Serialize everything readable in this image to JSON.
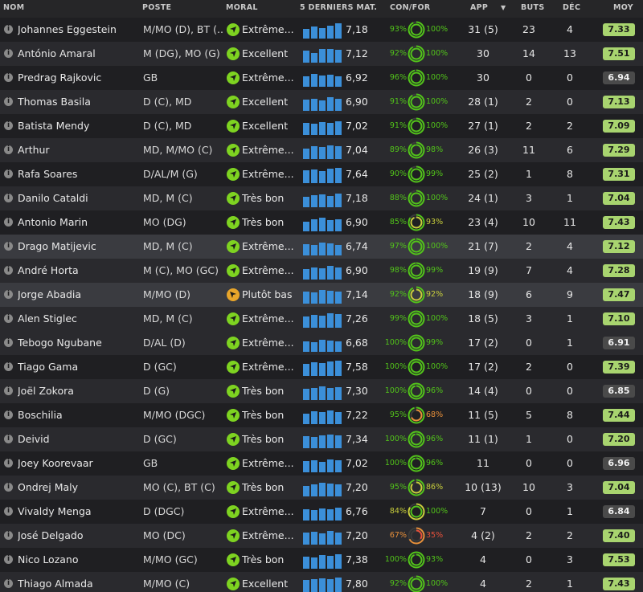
{
  "columns": {
    "name": "NOM",
    "position": "POSTE",
    "morale": "MORAL",
    "last5": "5 DERNIERS MAT...",
    "confor": "CON/FOR",
    "app": "APP",
    "goals": "BUTS",
    "assists": "DÉC",
    "avg": "MOY"
  },
  "colors": {
    "morale_good": "#7ed321",
    "morale_low": "#e8a52a",
    "bar": "#3b8fd9",
    "pct_green": "#52c41a",
    "pct_yellow": "#c9cf3c",
    "pct_orange": "#e8903a",
    "pct_red": "#e8503a",
    "avg_green": "#a8d46f",
    "avg_gray": "#4a4a4a"
  },
  "players": [
    {
      "name": "Johannes Eggestein",
      "position": "M/MO (D), BT (...",
      "morale": "Extrême...",
      "morale_level": "high",
      "form": [
        0.55,
        0.7,
        0.6,
        0.75,
        0.9
      ],
      "rating": "7,18",
      "con": "93%",
      "for": "100%",
      "app": "31 (5)",
      "goals": "23",
      "assists": "4",
      "avg": "7.33",
      "avg_style": "green",
      "con_color": "green",
      "for_color": "green"
    },
    {
      "name": "António Amaral",
      "position": "M (DG), MO (G)",
      "morale": "Excellent",
      "morale_level": "high",
      "form": [
        0.7,
        0.55,
        0.8,
        0.8,
        0.75
      ],
      "rating": "7,12",
      "con": "92%",
      "for": "100%",
      "app": "30",
      "goals": "14",
      "assists": "13",
      "avg": "7.51",
      "avg_style": "green",
      "con_color": "green",
      "for_color": "green"
    },
    {
      "name": "Predrag Rajkovic",
      "position": "GB",
      "morale": "Extrême...",
      "morale_level": "high",
      "form": [
        0.6,
        0.75,
        0.65,
        0.7,
        0.6
      ],
      "rating": "6,92",
      "con": "96%",
      "for": "100%",
      "app": "30",
      "goals": "0",
      "assists": "0",
      "avg": "6.94",
      "avg_style": "gray",
      "con_color": "green",
      "for_color": "green"
    },
    {
      "name": "Thomas Basila",
      "position": "D (C), MD",
      "morale": "Excellent",
      "morale_level": "high",
      "form": [
        0.65,
        0.7,
        0.6,
        0.8,
        0.7
      ],
      "rating": "6,90",
      "con": "91%",
      "for": "100%",
      "app": "28 (1)",
      "goals": "2",
      "assists": "0",
      "avg": "7.13",
      "avg_style": "green",
      "con_color": "green",
      "for_color": "green"
    },
    {
      "name": "Batista Mendy",
      "position": "D (C), MD",
      "morale": "Excellent",
      "morale_level": "high",
      "form": [
        0.7,
        0.65,
        0.75,
        0.7,
        0.8
      ],
      "rating": "7,02",
      "con": "91%",
      "for": "100%",
      "app": "27 (1)",
      "goals": "2",
      "assists": "2",
      "avg": "7.09",
      "avg_style": "green",
      "con_color": "green",
      "for_color": "green"
    },
    {
      "name": "Arthur",
      "position": "MD, M/MO (C)",
      "morale": "Extrême...",
      "morale_level": "high",
      "form": [
        0.6,
        0.75,
        0.7,
        0.8,
        0.75
      ],
      "rating": "7,04",
      "con": "89%",
      "for": "98%",
      "app": "26 (3)",
      "goals": "11",
      "assists": "6",
      "avg": "7.29",
      "avg_style": "green",
      "con_color": "green",
      "for_color": "green"
    },
    {
      "name": "Rafa Soares",
      "position": "D/AL/M (G)",
      "morale": "Extrême...",
      "morale_level": "high",
      "form": [
        0.75,
        0.8,
        0.7,
        0.85,
        0.9
      ],
      "rating": "7,64",
      "con": "90%",
      "for": "99%",
      "app": "25 (2)",
      "goals": "1",
      "assists": "8",
      "avg": "7.31",
      "avg_style": "green",
      "con_color": "green",
      "for_color": "green"
    },
    {
      "name": "Danilo Cataldi",
      "position": "MD, M (C)",
      "morale": "Très bon",
      "morale_level": "high",
      "form": [
        0.6,
        0.7,
        0.75,
        0.65,
        0.8
      ],
      "rating": "7,18",
      "con": "88%",
      "for": "100%",
      "app": "24 (1)",
      "goals": "3",
      "assists": "1",
      "avg": "7.04",
      "avg_style": "green",
      "con_color": "green",
      "for_color": "green"
    },
    {
      "name": "Antonio Marin",
      "position": "MO (DG)",
      "morale": "Très bon",
      "morale_level": "high",
      "form": [
        0.55,
        0.7,
        0.8,
        0.65,
        0.7
      ],
      "rating": "6,90",
      "con": "85%",
      "for": "93%",
      "app": "23 (4)",
      "goals": "10",
      "assists": "11",
      "avg": "7.43",
      "avg_style": "green",
      "con_color": "green",
      "for_color": "yellow"
    },
    {
      "name": "Drago Matijevic",
      "position": "MD, M (C)",
      "morale": "Extrême...",
      "morale_level": "high",
      "form": [
        0.65,
        0.6,
        0.75,
        0.7,
        0.6
      ],
      "rating": "6,74",
      "con": "97%",
      "for": "100%",
      "app": "21 (7)",
      "goals": "2",
      "assists": "4",
      "avg": "7.12",
      "avg_style": "green",
      "con_color": "green",
      "for_color": "green"
    },
    {
      "name": "André Horta",
      "position": "M (C), MO (GC)",
      "morale": "Extrême...",
      "morale_level": "high",
      "form": [
        0.6,
        0.7,
        0.65,
        0.8,
        0.7
      ],
      "rating": "6,90",
      "con": "98%",
      "for": "99%",
      "app": "19 (9)",
      "goals": "7",
      "assists": "4",
      "avg": "7.28",
      "avg_style": "green",
      "con_color": "green",
      "for_color": "green"
    },
    {
      "name": "Jorge Abadia",
      "position": "M/MO (D)",
      "morale": "Plutôt bas",
      "morale_level": "low",
      "form": [
        0.7,
        0.65,
        0.8,
        0.75,
        0.7
      ],
      "rating": "7,14",
      "con": "92%",
      "for": "92%",
      "app": "18 (9)",
      "goals": "6",
      "assists": "9",
      "avg": "7.47",
      "avg_style": "green",
      "con_color": "green",
      "for_color": "yellow"
    },
    {
      "name": "Alen Stiglec",
      "position": "MD, M (C)",
      "morale": "Extrême...",
      "morale_level": "high",
      "form": [
        0.65,
        0.75,
        0.7,
        0.85,
        0.8
      ],
      "rating": "7,26",
      "con": "99%",
      "for": "100%",
      "app": "18 (5)",
      "goals": "3",
      "assists": "1",
      "avg": "7.10",
      "avg_style": "green",
      "con_color": "green",
      "for_color": "green"
    },
    {
      "name": "Tebogo Ngubane",
      "position": "D/AL (D)",
      "morale": "Extrême...",
      "morale_level": "high",
      "form": [
        0.6,
        0.55,
        0.7,
        0.65,
        0.6
      ],
      "rating": "6,68",
      "con": "100%",
      "for": "99%",
      "app": "17 (2)",
      "goals": "0",
      "assists": "1",
      "avg": "6.91",
      "avg_style": "gray",
      "con_color": "green",
      "for_color": "green"
    },
    {
      "name": "Tiago Gama",
      "position": "D (GC)",
      "morale": "Extrême...",
      "morale_level": "high",
      "form": [
        0.7,
        0.8,
        0.75,
        0.85,
        0.9
      ],
      "rating": "7,58",
      "con": "100%",
      "for": "100%",
      "app": "17 (2)",
      "goals": "2",
      "assists": "0",
      "avg": "7.39",
      "avg_style": "green",
      "con_color": "green",
      "for_color": "green"
    },
    {
      "name": "Joël Zokora",
      "position": "D (G)",
      "morale": "Très bon",
      "morale_level": "high",
      "form": [
        0.65,
        0.7,
        0.8,
        0.7,
        0.75
      ],
      "rating": "7,30",
      "con": "100%",
      "for": "96%",
      "app": "14 (4)",
      "goals": "0",
      "assists": "0",
      "avg": "6.85",
      "avg_style": "gray",
      "con_color": "green",
      "for_color": "green"
    },
    {
      "name": "Boschilia",
      "position": "M/MO (DGC)",
      "morale": "Très bon",
      "morale_level": "high",
      "form": [
        0.6,
        0.75,
        0.7,
        0.8,
        0.7
      ],
      "rating": "7,22",
      "con": "95%",
      "for": "68%",
      "app": "11 (5)",
      "goals": "5",
      "assists": "8",
      "avg": "7.44",
      "avg_style": "green",
      "con_color": "green",
      "for_color": "orange"
    },
    {
      "name": "Deivid",
      "position": "D (GC)",
      "morale": "Très bon",
      "morale_level": "high",
      "form": [
        0.7,
        0.65,
        0.75,
        0.8,
        0.75
      ],
      "rating": "7,34",
      "con": "100%",
      "for": "96%",
      "app": "11 (1)",
      "goals": "1",
      "assists": "0",
      "avg": "7.20",
      "avg_style": "green",
      "con_color": "green",
      "for_color": "green"
    },
    {
      "name": "Joey Koorevaar",
      "position": "GB",
      "morale": "Extrême...",
      "morale_level": "high",
      "form": [
        0.65,
        0.7,
        0.6,
        0.75,
        0.7
      ],
      "rating": "7,02",
      "con": "100%",
      "for": "96%",
      "app": "11",
      "goals": "0",
      "assists": "0",
      "avg": "6.96",
      "avg_style": "gray",
      "con_color": "green",
      "for_color": "green"
    },
    {
      "name": "Ondrej Maly",
      "position": "MO (C), BT (C)",
      "morale": "Très bon",
      "morale_level": "high",
      "form": [
        0.6,
        0.7,
        0.8,
        0.75,
        0.7
      ],
      "rating": "7,20",
      "con": "95%",
      "for": "86%",
      "app": "10 (13)",
      "goals": "10",
      "assists": "3",
      "avg": "7.04",
      "avg_style": "green",
      "con_color": "green",
      "for_color": "yellow"
    },
    {
      "name": "Vivaldy Menga",
      "position": "D (DGC)",
      "morale": "Extrême...",
      "morale_level": "high",
      "form": [
        0.65,
        0.6,
        0.7,
        0.65,
        0.75
      ],
      "rating": "6,76",
      "con": "84%",
      "for": "100%",
      "app": "7",
      "goals": "0",
      "assists": "1",
      "avg": "6.84",
      "avg_style": "gray",
      "con_color": "yellow",
      "for_color": "green"
    },
    {
      "name": "José Delgado",
      "position": "MO (DC)",
      "morale": "Extrême...",
      "morale_level": "high",
      "form": [
        0.7,
        0.75,
        0.65,
        0.8,
        0.7
      ],
      "rating": "7,20",
      "con": "67%",
      "for": "35%",
      "app": "4 (2)",
      "goals": "2",
      "assists": "2",
      "avg": "7.40",
      "avg_style": "green",
      "con_color": "orange",
      "for_color": "red"
    },
    {
      "name": "Nico Lozano",
      "position": "M/MO (GC)",
      "morale": "Très bon",
      "morale_level": "high",
      "form": [
        0.7,
        0.65,
        0.8,
        0.75,
        0.85
      ],
      "rating": "7,38",
      "con": "100%",
      "for": "93%",
      "app": "4",
      "goals": "0",
      "assists": "3",
      "avg": "7.53",
      "avg_style": "green",
      "con_color": "green",
      "for_color": "green"
    },
    {
      "name": "Thiago Almada",
      "position": "M/MO (C)",
      "morale": "Excellent",
      "morale_level": "high",
      "form": [
        0.75,
        0.8,
        0.85,
        0.8,
        0.9
      ],
      "rating": "7,80",
      "con": "92%",
      "for": "100%",
      "app": "4",
      "goals": "2",
      "assists": "1",
      "avg": "7.43",
      "avg_style": "green",
      "con_color": "green",
      "for_color": "green"
    }
  ]
}
